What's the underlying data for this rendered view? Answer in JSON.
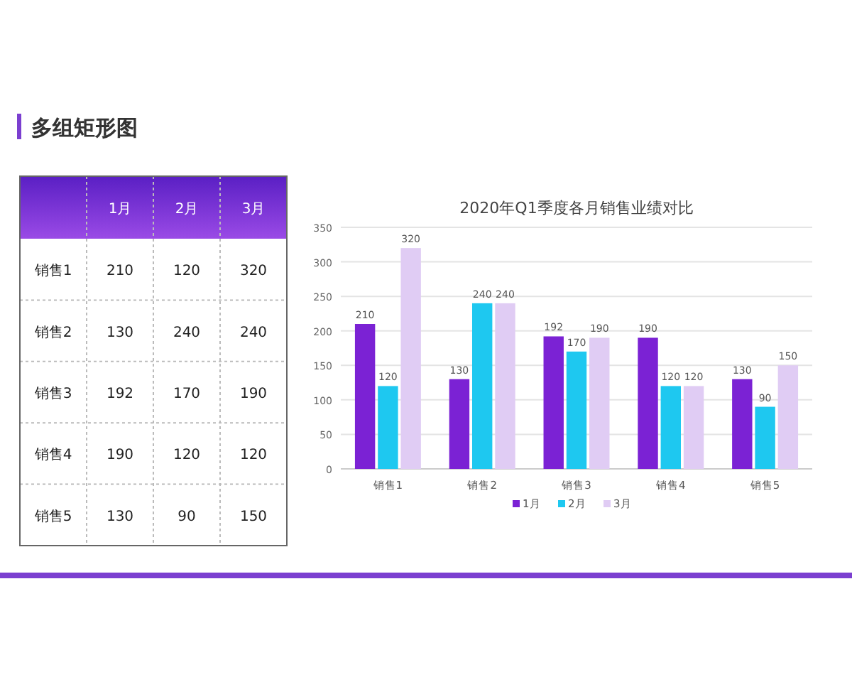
{
  "chart_data": {
    "type": "bar",
    "title": "2020年Q1季度各月销售业绩对比",
    "annotations": [
      "多组矩形图"
    ],
    "categories": [
      "销售1",
      "销售2",
      "销售3",
      "销售4",
      "销售5"
    ],
    "series": [
      {
        "name": "1月",
        "color": "#7b22d4",
        "values": [
          210,
          130,
          192,
          190,
          130
        ],
        "value_labels": [
          "210",
          "130",
          "192",
          "190",
          "130"
        ]
      },
      {
        "name": "2月",
        "color": "#1ec8f0",
        "values": [
          120,
          240,
          170,
          120,
          90
        ],
        "value_labels": [
          "120",
          "240",
          "170",
          "120",
          "90"
        ]
      },
      {
        "name": "3月",
        "color": "#e0ccf4",
        "values": [
          320,
          240,
          190,
          120,
          150
        ],
        "value_labels": [
          "320",
          "240",
          "190",
          "120",
          "150"
        ]
      }
    ],
    "ylim": [
      0,
      350
    ],
    "yticks": [
      0,
      50,
      100,
      150,
      200,
      250,
      300,
      350
    ],
    "grid": "y",
    "legend": "bottom"
  }
}
